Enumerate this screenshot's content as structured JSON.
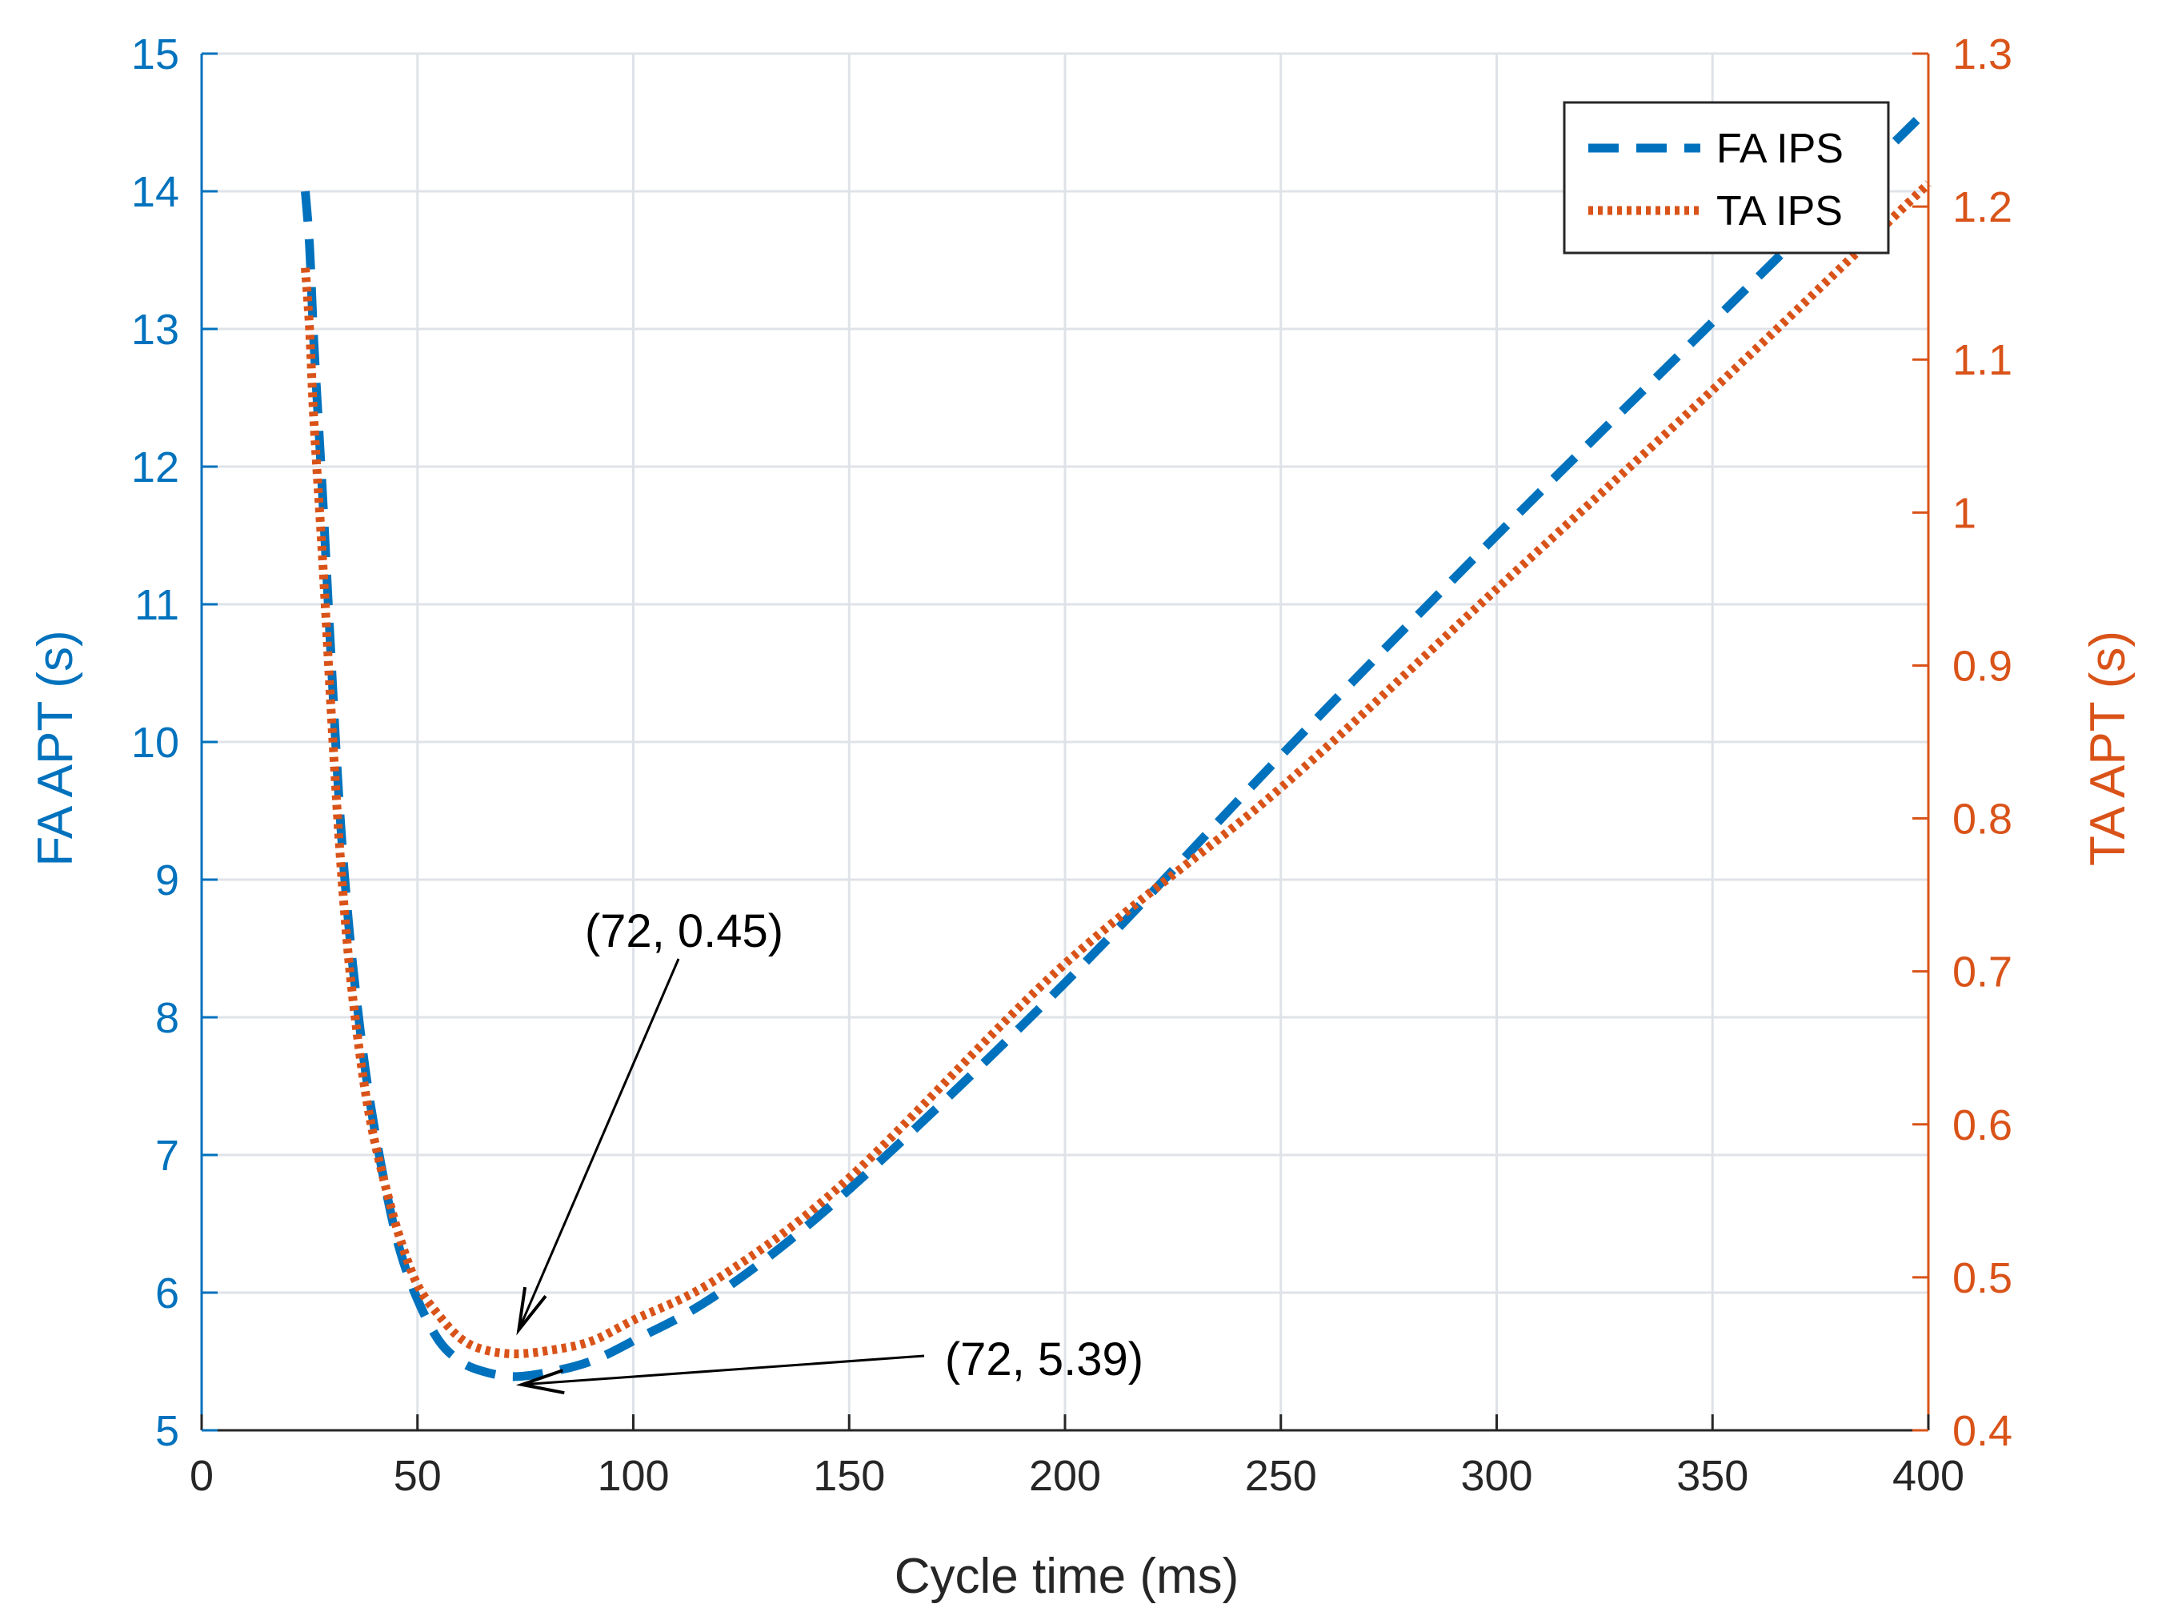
{
  "chart_data": {
    "type": "line",
    "xlabel": "Cycle time (ms)",
    "ylabel_left": "FA APT (s)",
    "ylabel_right": "TA APT (s)",
    "xlim": [
      0,
      400
    ],
    "ylim_left": [
      5,
      15
    ],
    "ylim_right": [
      0.4,
      1.3
    ],
    "x_ticks": [
      "0",
      "50",
      "100",
      "150",
      "200",
      "250",
      "300",
      "350",
      "400"
    ],
    "y_left_ticks": [
      "5",
      "6",
      "7",
      "8",
      "9",
      "10",
      "11",
      "12",
      "13",
      "14",
      "15"
    ],
    "y_right_ticks": [
      "0.4",
      "0.5",
      "0.6",
      "0.7",
      "0.8",
      "0.9",
      "1",
      "1.1",
      "1.2",
      "1.3"
    ],
    "grid": true,
    "legend_position": "top-right",
    "colors": {
      "fa": "#0072BD",
      "ta": "#D95319",
      "grid": "#dfe3e8",
      "axis": "#262626"
    },
    "series": [
      {
        "name": "FA IPS",
        "axis": "left",
        "style": "dashed",
        "x": [
          24,
          25,
          26,
          28,
          30,
          32,
          34,
          36,
          38,
          40,
          43,
          46,
          50,
          55,
          60,
          65,
          72,
          80,
          90,
          100,
          120,
          150,
          200,
          250,
          300,
          350,
          400
        ],
        "y": [
          14.0,
          13.6,
          12.9,
          11.8,
          10.6,
          9.5,
          8.7,
          8.1,
          7.6,
          7.2,
          6.7,
          6.3,
          5.95,
          5.65,
          5.5,
          5.43,
          5.39,
          5.42,
          5.5,
          5.65,
          6.0,
          6.75,
          8.25,
          9.9,
          11.5,
          13.05,
          14.6
        ]
      },
      {
        "name": "TA IPS",
        "axis": "right",
        "style": "dotted",
        "x": [
          24,
          25,
          26,
          28,
          30,
          32,
          34,
          36,
          38,
          40,
          43,
          46,
          50,
          55,
          60,
          65,
          72,
          80,
          90,
          100,
          120,
          150,
          200,
          250,
          300,
          350,
          400
        ],
        "y": [
          1.16,
          1.12,
          1.06,
          0.97,
          0.87,
          0.78,
          0.71,
          0.66,
          0.62,
          0.59,
          0.555,
          0.525,
          0.495,
          0.475,
          0.46,
          0.453,
          0.45,
          0.452,
          0.458,
          0.472,
          0.5,
          0.565,
          0.705,
          0.82,
          0.95,
          1.08,
          1.215
        ]
      }
    ],
    "annotations": [
      {
        "text": "(72, 0.45)",
        "point_x": 72,
        "point_y": 0.45,
        "axis": "right"
      },
      {
        "text": "(72, 5.39)",
        "point_x": 72,
        "point_y": 5.39,
        "axis": "left"
      }
    ]
  }
}
